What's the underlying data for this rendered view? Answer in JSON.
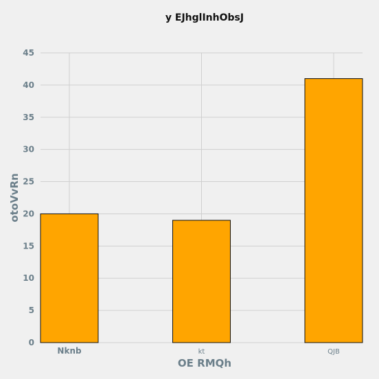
{
  "chart_data": {
    "type": "bar",
    "title": "y EJhglInhObsJ",
    "xlabel": "OE RMQh",
    "ylabel": "otoVvRn",
    "categories": [
      "Nknb",
      "kt",
      "QJB"
    ],
    "values": [
      20,
      19,
      41
    ],
    "ylim": [
      0,
      45
    ],
    "yticks": [
      0,
      5,
      10,
      15,
      20,
      25,
      30,
      35,
      40,
      45
    ],
    "grid": true,
    "colors": {
      "bar": "#FFA500",
      "edge": "#111111",
      "background": "#f0f0f0",
      "grid": "#cfcfcf",
      "axis_text": "#6b7f8a"
    }
  }
}
